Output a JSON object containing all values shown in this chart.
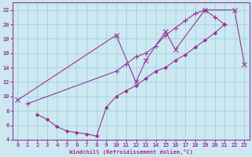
{
  "xlabel": "Windchill (Refroidissement éolien,°C)",
  "background_color": "#cce8f0",
  "grid_color": "#99ccdd",
  "line_color": "#993399",
  "xlim": [
    -0.5,
    23.5
  ],
  "ylim": [
    4,
    23
  ],
  "xticks": [
    0,
    1,
    2,
    3,
    4,
    5,
    6,
    7,
    8,
    9,
    10,
    11,
    12,
    13,
    14,
    15,
    16,
    17,
    18,
    19,
    20,
    21,
    22,
    23
  ],
  "yticks": [
    4,
    6,
    8,
    10,
    12,
    14,
    16,
    18,
    20,
    22
  ],
  "series": [
    {
      "x": [
        0,
        10,
        12,
        13,
        15,
        16,
        19,
        22,
        23
      ],
      "y": [
        9.5,
        18.5,
        12.0,
        15.0,
        19.0,
        16.5,
        22.0,
        22.0,
        14.5
      ],
      "marker": "x",
      "markersize": 4
    },
    {
      "x": [
        1,
        10,
        11,
        12,
        13,
        14,
        15,
        16,
        17,
        18,
        19,
        20,
        21
      ],
      "y": [
        9.0,
        13.5,
        14.5,
        15.5,
        16.0,
        17.0,
        18.5,
        19.5,
        20.5,
        21.5,
        22.0,
        21.0,
        20.0
      ],
      "marker": "+",
      "markersize": 4
    },
    {
      "x": [
        2,
        3,
        4,
        5,
        6,
        7,
        8,
        9,
        10,
        11,
        12,
        13,
        14,
        15,
        16,
        17,
        18,
        19,
        20,
        21
      ],
      "y": [
        7.5,
        6.8,
        5.8,
        5.2,
        5.0,
        4.8,
        4.5,
        8.5,
        10.0,
        10.8,
        11.5,
        12.5,
        13.5,
        14.0,
        15.0,
        15.8,
        16.8,
        17.8,
        18.8,
        20.0
      ],
      "marker": "D",
      "markersize": 2
    }
  ]
}
